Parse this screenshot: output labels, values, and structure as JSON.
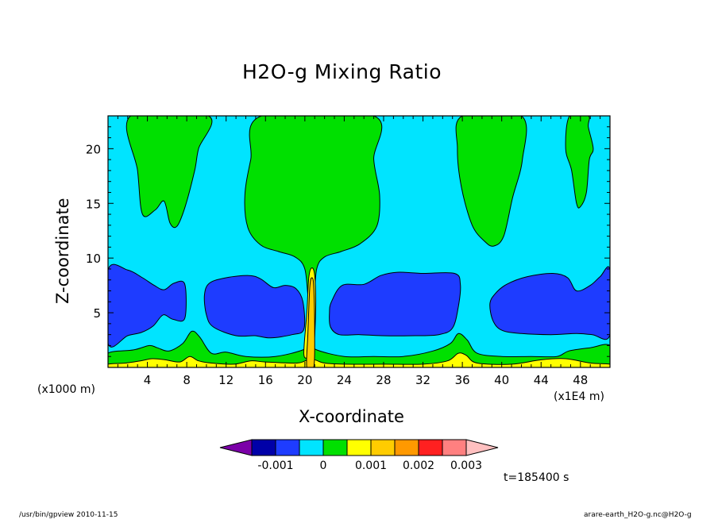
{
  "chart_data": {
    "type": "contour",
    "title": "H2O-g Mixing Ratio",
    "xlabel": "X-coordinate",
    "ylabel": "Z-coordinate",
    "x_unit": "(x1000 m)",
    "x_scale_note": "(x1E4 m)",
    "time_label": "t=185400 s",
    "xlim": [
      0,
      51
    ],
    "ylim": [
      0,
      23
    ],
    "x_ticks": [
      "4",
      "8",
      "12",
      "16",
      "20",
      "24",
      "28",
      "32",
      "36",
      "40",
      "44",
      "48"
    ],
    "y_ticks": [
      "5",
      "10",
      "15",
      "20"
    ],
    "contour_levels": [
      -0.0015,
      -0.001,
      -0.0005,
      0,
      0.0005,
      0.001,
      0.0015,
      0.002,
      0.0025,
      0.003,
      0.0035
    ],
    "colorbar": {
      "colors": [
        "#7b00a8",
        "#0000a8",
        "#1e3cff",
        "#00e4ff",
        "#00e000",
        "#ffff00",
        "#ffcc00",
        "#ff9900",
        "#ff2020",
        "#ff8080",
        "#ffc0c0"
      ],
      "tick_labels": [
        "-0.001",
        "0",
        "0.001",
        "0.002",
        "0.003"
      ]
    },
    "grid": false,
    "regions": [
      {
        "level": "background",
        "color": "#00e4ff",
        "points": []
      },
      {
        "level": "0 to 0.0005 (upper)",
        "color": "#00e000",
        "points": [
          [
            2.3,
            23
          ],
          [
            3.0,
            18
          ],
          [
            3.5,
            14
          ],
          [
            4.8,
            14.4
          ],
          [
            5.7,
            15.2
          ],
          [
            6.3,
            13.2
          ],
          [
            7.0,
            12.9
          ],
          [
            7.8,
            14.6
          ],
          [
            8.8,
            18
          ],
          [
            9.2,
            20
          ],
          [
            10.2,
            23
          ]
        ]
      },
      {
        "level": "0 to 0.0005 (upper)",
        "color": "#00e000",
        "points": [
          [
            15.6,
            23
          ],
          [
            14.5,
            19
          ],
          [
            13.9,
            15.7
          ],
          [
            14.2,
            12.8
          ],
          [
            15.5,
            11.2
          ],
          [
            17.3,
            10.6
          ],
          [
            19.0,
            10.1
          ],
          [
            20.0,
            9.0
          ],
          [
            20.4,
            6.0
          ],
          [
            20.9,
            6.0
          ],
          [
            21.2,
            9.0
          ],
          [
            22.0,
            10.1
          ],
          [
            23.7,
            10.6
          ],
          [
            25.6,
            11.3
          ],
          [
            27.3,
            12.9
          ],
          [
            27.6,
            15.7
          ],
          [
            27.0,
            19
          ],
          [
            27.0,
            23
          ]
        ]
      },
      {
        "level": "0 to 0.0005 (upper)",
        "color": "#00e000",
        "points": [
          [
            36.0,
            23
          ],
          [
            35.5,
            20
          ],
          [
            35.9,
            16.5
          ],
          [
            37.0,
            13.0
          ],
          [
            38.3,
            11.5
          ],
          [
            39.2,
            11.1
          ],
          [
            40.2,
            12.0
          ],
          [
            41.1,
            15.5
          ],
          [
            42.1,
            19
          ],
          [
            42.0,
            23
          ]
        ]
      },
      {
        "level": "0 to 0.0005 (upper)",
        "color": "#00e000",
        "points": [
          [
            46.9,
            23
          ],
          [
            46.5,
            20
          ],
          [
            47.1,
            18
          ],
          [
            47.6,
            15.0
          ],
          [
            48.0,
            14.7
          ],
          [
            48.6,
            16
          ],
          [
            48.9,
            19
          ],
          [
            49.3,
            20
          ],
          [
            48.8,
            22
          ],
          [
            48.8,
            23
          ]
        ]
      },
      {
        "level": "-0.0005 to 0",
        "color": "#1e3cff",
        "points": [
          [
            0,
            8.9
          ],
          [
            2.0,
            8.9
          ],
          [
            3.5,
            8.2
          ],
          [
            4.7,
            7.5
          ],
          [
            5.7,
            7.1
          ],
          [
            6.7,
            7.7
          ],
          [
            7.8,
            7.6
          ],
          [
            7.8,
            4.5
          ],
          [
            6.6,
            4.4
          ],
          [
            5.6,
            4.8
          ],
          [
            4.6,
            3.8
          ],
          [
            3.4,
            3.2
          ],
          [
            2.0,
            2.9
          ],
          [
            0,
            2.2
          ]
        ]
      },
      {
        "level": "-0.0005 to 0",
        "color": "#1e3cff",
        "points": [
          [
            9.8,
            6.6
          ],
          [
            10.3,
            7.7
          ],
          [
            12.0,
            8.2
          ],
          [
            14.3,
            8.4
          ],
          [
            15.5,
            8.1
          ],
          [
            16.8,
            7.3
          ],
          [
            18.0,
            7.5
          ],
          [
            19.1,
            7.2
          ],
          [
            19.8,
            6.0
          ],
          [
            19.9,
            3.5
          ],
          [
            18.7,
            3.0
          ],
          [
            16.5,
            2.7
          ],
          [
            14.9,
            2.9
          ],
          [
            13.0,
            2.9
          ],
          [
            10.7,
            3.7
          ],
          [
            10.0,
            4.8
          ]
        ]
      },
      {
        "level": "-0.0005 to 0",
        "color": "#1e3cff",
        "points": [
          [
            22.7,
            6.0
          ],
          [
            23.8,
            7.5
          ],
          [
            26.0,
            7.6
          ],
          [
            27.7,
            8.4
          ],
          [
            29.4,
            8.7
          ],
          [
            32.0,
            8.6
          ],
          [
            35.2,
            8.6
          ],
          [
            35.8,
            7.6
          ],
          [
            35.6,
            5.6
          ],
          [
            35.0,
            3.6
          ],
          [
            33.6,
            3.0
          ],
          [
            31.2,
            2.9
          ],
          [
            27.8,
            2.9
          ],
          [
            25.6,
            3.0
          ],
          [
            23.5,
            3.0
          ],
          [
            22.6,
            3.7
          ],
          [
            22.5,
            5.0
          ]
        ]
      },
      {
        "level": "-0.0005 to 0",
        "color": "#1e3cff",
        "points": [
          [
            38.8,
            5.8
          ],
          [
            39.3,
            6.7
          ],
          [
            40.5,
            7.6
          ],
          [
            42.6,
            8.3
          ],
          [
            45.2,
            8.6
          ],
          [
            46.7,
            8.2
          ],
          [
            47.6,
            7.0
          ],
          [
            49.0,
            7.5
          ],
          [
            50.0,
            8.3
          ],
          [
            51,
            8.9
          ],
          [
            51,
            3.0
          ],
          [
            49.2,
            3.0
          ],
          [
            47.6,
            3.1
          ],
          [
            45.0,
            3.0
          ],
          [
            42.0,
            3.1
          ],
          [
            40.0,
            3.4
          ],
          [
            39.1,
            4.3
          ]
        ]
      },
      {
        "level": "0 to 0.0005 (lower)",
        "color": "#00e000",
        "points": [
          [
            0,
            0
          ],
          [
            51,
            0
          ],
          [
            51,
            2.0
          ],
          [
            49.0,
            1.8
          ],
          [
            46.8,
            1.5
          ],
          [
            45.6,
            1.0
          ],
          [
            43.0,
            1.0
          ],
          [
            40.0,
            1.0
          ],
          [
            37.5,
            1.3
          ],
          [
            36.5,
            2.5
          ],
          [
            35.6,
            3.1
          ],
          [
            34.8,
            2.2
          ],
          [
            33.0,
            1.5
          ],
          [
            30.0,
            1.0
          ],
          [
            27.0,
            1.0
          ],
          [
            24.0,
            1.0
          ],
          [
            21.2,
            1.6
          ],
          [
            20.5,
            2.2
          ],
          [
            19.8,
            1.6
          ],
          [
            17.0,
            1.0
          ],
          [
            14.0,
            1.0
          ],
          [
            12.0,
            1.4
          ],
          [
            10.5,
            1.3
          ],
          [
            9.3,
            2.8
          ],
          [
            8.5,
            3.3
          ],
          [
            7.6,
            2.2
          ],
          [
            6.2,
            1.5
          ],
          [
            5.0,
            1.8
          ],
          [
            4.2,
            2.0
          ],
          [
            2.6,
            1.6
          ],
          [
            0,
            1.3
          ]
        ]
      },
      {
        "level": "0.0005 to 0.001",
        "color": "#ffff00",
        "points": [
          [
            0,
            0
          ],
          [
            51,
            0
          ],
          [
            51,
            0.3
          ],
          [
            49.0,
            0.4
          ],
          [
            46.5,
            0.8
          ],
          [
            44.0,
            0.7
          ],
          [
            41.0,
            0.3
          ],
          [
            37.5,
            0.4
          ],
          [
            36.4,
            1.1
          ],
          [
            35.6,
            1.3
          ],
          [
            34.5,
            0.6
          ],
          [
            32.0,
            0.3
          ],
          [
            28.0,
            0.3
          ],
          [
            24.0,
            0.3
          ],
          [
            22.0,
            0.4
          ],
          [
            21.0,
            0.7
          ],
          [
            20.3,
            0.7
          ],
          [
            19.2,
            0.4
          ],
          [
            16.0,
            0.5
          ],
          [
            14.5,
            0.6
          ],
          [
            12.8,
            0.3
          ],
          [
            10.5,
            0.4
          ],
          [
            9.2,
            0.6
          ],
          [
            8.3,
            1.0
          ],
          [
            7.3,
            0.5
          ],
          [
            5.8,
            0.7
          ],
          [
            4.5,
            0.8
          ],
          [
            3.3,
            0.6
          ],
          [
            1.8,
            0.4
          ],
          [
            0,
            0.3
          ]
        ]
      },
      {
        "level": "0.0005 to 0.001",
        "color": "#ffff00",
        "points": [
          [
            19.9,
            1.2
          ],
          [
            20.2,
            5.0
          ],
          [
            20.4,
            8.2
          ],
          [
            20.7,
            9.1
          ],
          [
            21.0,
            8.4
          ],
          [
            21.1,
            5.5
          ],
          [
            20.9,
            1.8
          ],
          [
            20.5,
            1.1
          ]
        ]
      },
      {
        "level": "0.001 to 0.0015",
        "color": "#ffcc00",
        "points": [
          [
            20.2,
            0
          ],
          [
            20.3,
            3.0
          ],
          [
            20.5,
            7.3
          ],
          [
            20.7,
            8.2
          ],
          [
            20.9,
            7.4
          ],
          [
            21.0,
            3.0
          ],
          [
            20.9,
            0
          ]
        ]
      }
    ]
  },
  "footer": {
    "left": "/usr/bin/gpview   2010-11-15",
    "right": "arare-earth_H2O-g.nc@H2O-g"
  }
}
